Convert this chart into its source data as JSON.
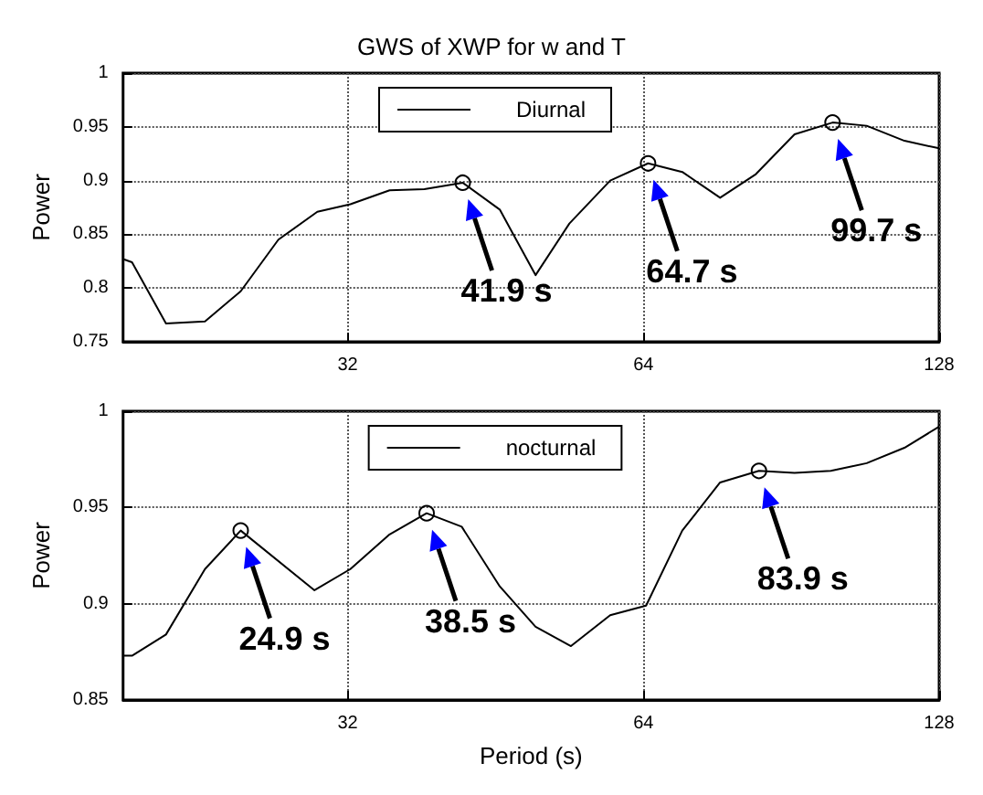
{
  "chart_data": [
    {
      "type": "line",
      "title": "GWS of XWP for w and T",
      "ylabel": "Power",
      "log": "x",
      "xlim": [
        18.9,
        128
      ],
      "xticks": [
        32,
        64,
        128
      ],
      "ylim": [
        0.75,
        1
      ],
      "yticks": [
        0.75,
        0.8,
        0.85,
        0.9,
        0.95,
        1
      ],
      "grid": true,
      "legend": "top",
      "marker": "none",
      "line_style": "solid",
      "series": [
        {
          "name": "Diurnal",
          "color": "#000000",
          "x": [
            18.9,
            19.3,
            20.9,
            22.9,
            24.9,
            27.2,
            29.8,
            32.2,
            35.3,
            38.3,
            41.9,
            45.7,
            49.7,
            53.8,
            59.2,
            64.7,
            70.1,
            76.6,
            83.3,
            91.2,
            99.7,
            108,
            118,
            128
          ],
          "values": [
            0.827,
            0.824,
            0.767,
            0.769,
            0.797,
            0.845,
            0.871,
            0.878,
            0.891,
            0.892,
            0.898,
            0.873,
            0.812,
            0.86,
            0.9,
            0.916,
            0.908,
            0.884,
            0.906,
            0.943,
            0.954,
            0.951,
            0.937,
            0.93
          ]
        }
      ],
      "annotations": [
        {
          "text": "41.9 s",
          "x": 41.9,
          "y": 0.898
        },
        {
          "text": "64.7 s",
          "x": 64.7,
          "y": 0.916
        },
        {
          "text": "99.7 s",
          "x": 99.7,
          "y": 0.954
        }
      ]
    },
    {
      "type": "line",
      "xlabel": "Period (s)",
      "ylabel": "Power",
      "log": "x",
      "xlim": [
        18.9,
        128
      ],
      "xticks": [
        32,
        64,
        128
      ],
      "ylim": [
        0.85,
        1
      ],
      "yticks": [
        0.85,
        0.9,
        0.95,
        1
      ],
      "grid": true,
      "legend": "top",
      "marker": "none",
      "line_style": "solid",
      "series": [
        {
          "name": "nocturnal",
          "color": "#000000",
          "x": [
            18.9,
            19.3,
            20.9,
            22.9,
            24.9,
            29.6,
            32.2,
            35.3,
            38.5,
            41.8,
            45.7,
            49.7,
            54,
            59.2,
            64.4,
            70.1,
            76.6,
            83.9,
            91.2,
            99.3,
            108,
            118,
            128
          ],
          "values": [
            0.873,
            0.873,
            0.884,
            0.918,
            0.938,
            0.907,
            0.918,
            0.936,
            0.947,
            0.94,
            0.909,
            0.888,
            0.878,
            0.894,
            0.899,
            0.938,
            0.963,
            0.969,
            0.968,
            0.969,
            0.973,
            0.981,
            0.992
          ]
        }
      ],
      "annotations": [
        {
          "text": "24.9 s",
          "x": 24.9,
          "y": 0.938
        },
        {
          "text": "38.5 s",
          "x": 38.5,
          "y": 0.947
        },
        {
          "text": "83.9 s",
          "x": 83.9,
          "y": 0.969
        }
      ]
    }
  ]
}
